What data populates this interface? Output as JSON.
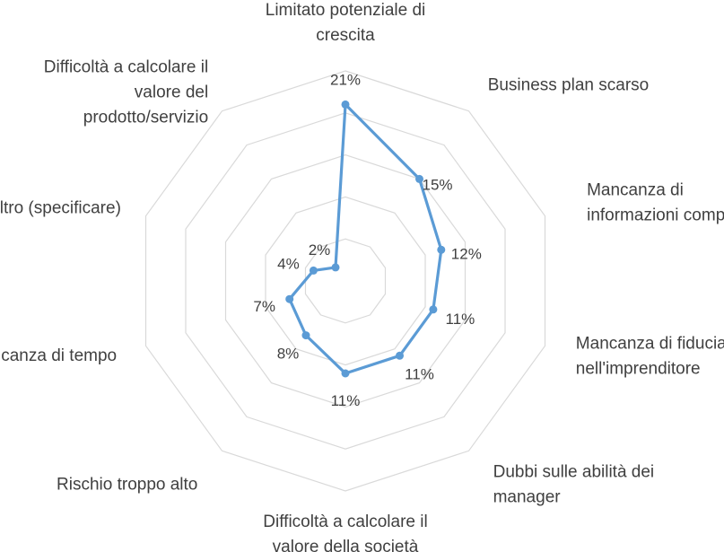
{
  "chart_data": {
    "type": "radar",
    "title": "",
    "categories": [
      "Limitato potenziale di crescita",
      "Business plan scarso",
      "Mancanza di informazioni complete",
      "Mancanza di fiducia nell'imprenditore",
      "Dubbi sulle abilità dei manager",
      "Difficoltà a calcolare il valore della società",
      "Rischio troppo alto",
      "Mancanza di tempo",
      "Altro (specificare)",
      "Difficoltà a calcolare il valore del prodotto/servizio"
    ],
    "category_lines": [
      [
        "Limitato potenziale di",
        "crescita"
      ],
      [
        "Business plan scarso"
      ],
      [
        "Mancanza di",
        "informazioni complete"
      ],
      [
        "Mancanza di fiducia",
        "nell'imprenditore"
      ],
      [
        "Dubbi sulle abilità dei",
        "manager"
      ],
      [
        "Difficoltà a calcolare il",
        "valore della società"
      ],
      [
        "Rischio troppo alto"
      ],
      [
        "Mancanza di tempo"
      ],
      [
        "Altro (specificare)"
      ],
      [
        "Difficoltà a calcolare il",
        "valore del",
        "prodotto/servizio"
      ]
    ],
    "series": [
      {
        "values": [
          21,
          15,
          12,
          11,
          11,
          11,
          8,
          7,
          4,
          2
        ]
      }
    ],
    "value_labels": [
      "21%",
      "15%",
      "12%",
      "11%",
      "11%",
      "11%",
      "8%",
      "7%",
      "4%",
      "2%"
    ],
    "rmax": 25,
    "rings": 5,
    "grid": true,
    "legend": "none",
    "series_color": "#5b9bd5",
    "grid_color": "#d9d9d9",
    "text_color": "#404040"
  }
}
